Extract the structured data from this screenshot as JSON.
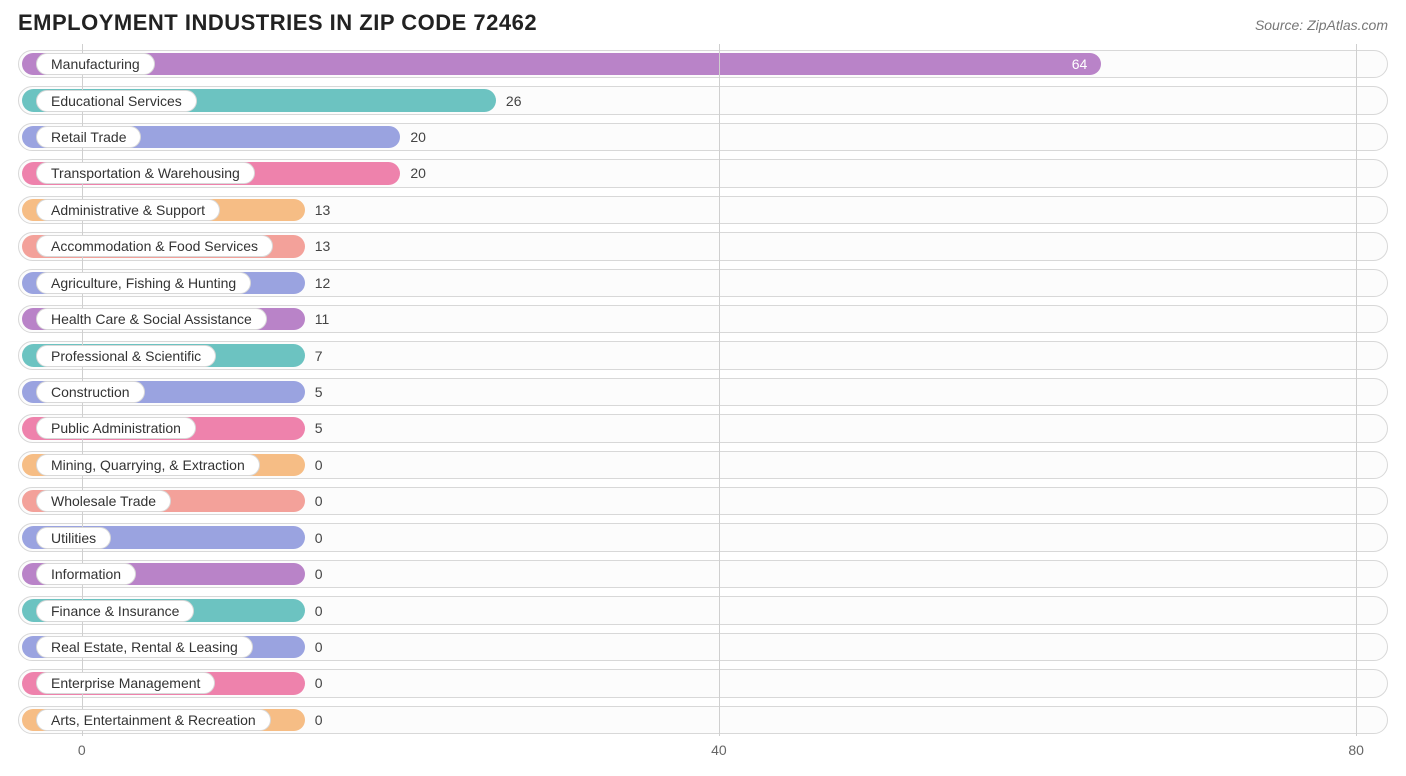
{
  "title": "EMPLOYMENT INDUSTRIES IN ZIP CODE 72462",
  "source": "Source: ZipAtlas.com",
  "chart": {
    "type": "bar-horizontal",
    "xmin": -4,
    "xmax": 82,
    "ticks": [
      0,
      40,
      80
    ],
    "grid_color": "#cfcfcf",
    "track_border": "#d8d8d8",
    "track_bg": "#fcfcfc",
    "label_fontsize": 14,
    "value_fontsize": 14,
    "title_fontsize": 22,
    "min_bar_value": 14,
    "bars": [
      {
        "label": "Manufacturing",
        "value": 64,
        "color": "#b983c8",
        "value_inside": true
      },
      {
        "label": "Educational Services",
        "value": 26,
        "color": "#6cc3c1"
      },
      {
        "label": "Retail Trade",
        "value": 20,
        "color": "#9aa3e0"
      },
      {
        "label": "Transportation & Warehousing",
        "value": 20,
        "color": "#ee82ac"
      },
      {
        "label": "Administrative & Support",
        "value": 13,
        "color": "#f6bd85"
      },
      {
        "label": "Accommodation & Food Services",
        "value": 13,
        "color": "#f3a19a"
      },
      {
        "label": "Agriculture, Fishing & Hunting",
        "value": 12,
        "color": "#9aa3e0"
      },
      {
        "label": "Health Care & Social Assistance",
        "value": 11,
        "color": "#b983c8"
      },
      {
        "label": "Professional & Scientific",
        "value": 7,
        "color": "#6cc3c1"
      },
      {
        "label": "Construction",
        "value": 5,
        "color": "#9aa3e0"
      },
      {
        "label": "Public Administration",
        "value": 5,
        "color": "#ee82ac"
      },
      {
        "label": "Mining, Quarrying, & Extraction",
        "value": 0,
        "color": "#f6bd85"
      },
      {
        "label": "Wholesale Trade",
        "value": 0,
        "color": "#f3a19a"
      },
      {
        "label": "Utilities",
        "value": 0,
        "color": "#9aa3e0"
      },
      {
        "label": "Information",
        "value": 0,
        "color": "#b983c8"
      },
      {
        "label": "Finance & Insurance",
        "value": 0,
        "color": "#6cc3c1"
      },
      {
        "label": "Real Estate, Rental & Leasing",
        "value": 0,
        "color": "#9aa3e0"
      },
      {
        "label": "Enterprise Management",
        "value": 0,
        "color": "#ee82ac"
      },
      {
        "label": "Arts, Entertainment & Recreation",
        "value": 0,
        "color": "#f6bd85"
      }
    ]
  }
}
